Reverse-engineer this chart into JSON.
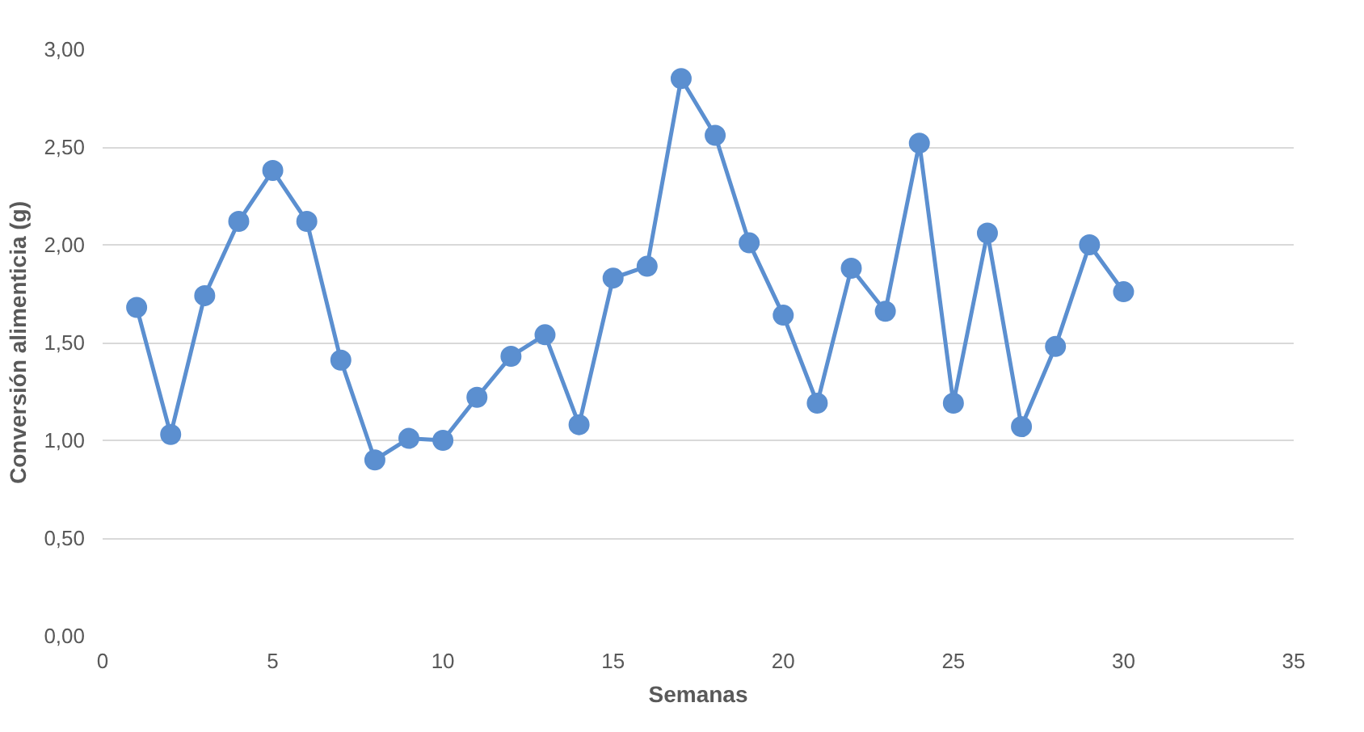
{
  "chart_data": {
    "type": "line",
    "xlabel": "Semanas",
    "ylabel": "Conversión alimenticia (g)",
    "x": [
      1,
      2,
      3,
      4,
      5,
      6,
      7,
      8,
      9,
      10,
      11,
      12,
      13,
      14,
      15,
      16,
      17,
      18,
      19,
      20,
      21,
      22,
      23,
      24,
      25,
      26,
      27,
      28,
      29,
      30
    ],
    "series": [
      {
        "color": "#5b8fd0",
        "values": [
          1.68,
          1.03,
          1.74,
          2.12,
          2.38,
          2.12,
          1.41,
          0.9,
          1.01,
          1.0,
          1.22,
          1.43,
          1.54,
          1.08,
          1.83,
          1.89,
          2.85,
          2.56,
          2.01,
          1.64,
          1.19,
          1.88,
          1.66,
          2.52,
          1.19,
          2.06,
          1.07,
          1.48,
          2.0,
          1.76
        ]
      }
    ],
    "xlim": [
      0,
      35
    ],
    "xticks": [
      0,
      5,
      10,
      15,
      20,
      25,
      30,
      35
    ],
    "ylim": [
      0,
      3
    ],
    "yticks": [
      {
        "value": 0,
        "label": "0,00"
      },
      {
        "value": 0.5,
        "label": "0,50"
      },
      {
        "value": 1,
        "label": "1,00"
      },
      {
        "value": 1.5,
        "label": "1,50"
      },
      {
        "value": 2,
        "label": "2,00"
      },
      {
        "value": 2.5,
        "label": "2,50"
      },
      {
        "value": 3,
        "label": "3,00"
      }
    ],
    "grid": "y",
    "marker": "circle",
    "line_style": "solid"
  }
}
